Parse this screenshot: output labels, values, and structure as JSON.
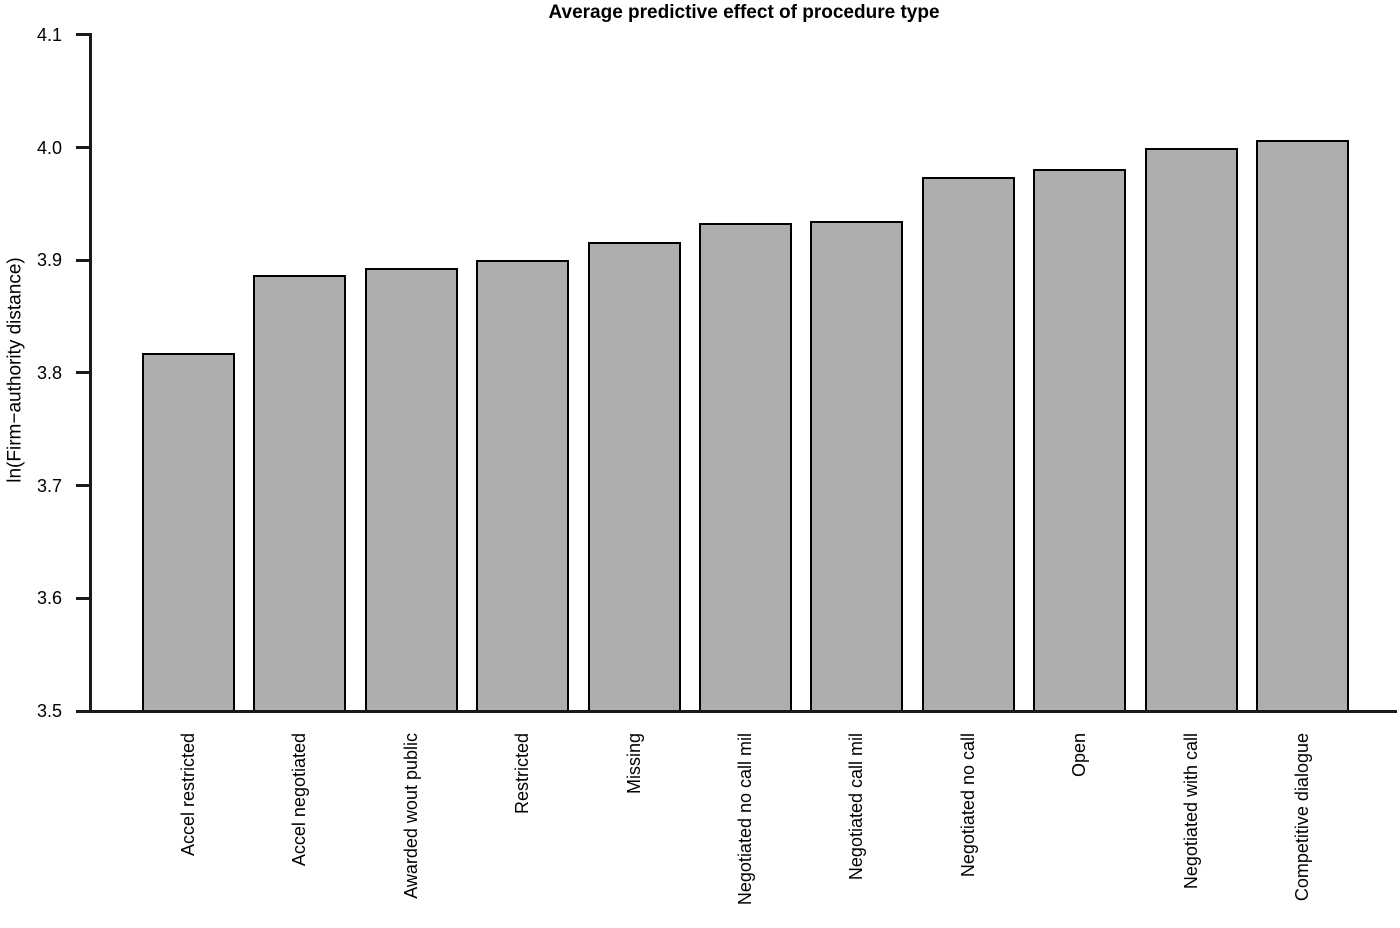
{
  "chart_data": {
    "type": "bar",
    "title": "Average predictive effect of procedure type",
    "ylabel": "ln(Firm−authority distance)",
    "xlabel": "",
    "categories": [
      "Accel restricted",
      "Accel negotiated",
      "Awarded wout public",
      "Restricted",
      "Missing",
      "Negotiated no call mil",
      "Negotiated call mil",
      "Negotiated no call",
      "Open",
      "Negotiated with call",
      "Competitive dialogue"
    ],
    "values": [
      3.818,
      3.887,
      3.893,
      3.9,
      3.916,
      3.933,
      3.935,
      3.974,
      3.981,
      4.0,
      4.007
    ],
    "ylim": [
      3.5,
      4.1
    ],
    "yticks": [
      3.5,
      3.6,
      3.7,
      3.8,
      3.9,
      4.0,
      4.1
    ],
    "ytick_labels": [
      "3.5",
      "3.6",
      "3.7",
      "3.8",
      "3.9",
      "4.0",
      "4.1"
    ],
    "grid": false,
    "legend": "none",
    "bar_orientation": "vertical",
    "x_label_rotation_degrees": 90,
    "colors": {
      "bar_fill": "#aeaeae",
      "bar_border": "#000000",
      "axis": "#1a1a1a",
      "text": "#000000",
      "background": "#ffffff"
    }
  }
}
